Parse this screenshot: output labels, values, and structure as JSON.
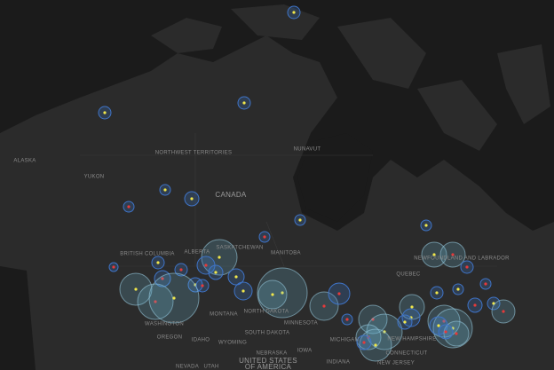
{
  "map": {
    "labels": [
      "ALASKA",
      "YUKON",
      "NORTHWEST TERRITORIES",
      "NUNAVUT",
      "CANADA",
      "BRITISH COLUMBIA",
      "ALBERTA",
      "SASKATCHEWAN",
      "MANITOBA",
      "QUEBEC",
      "NEWFOUNDLAND AND LABRADOR",
      "WASHINGTON",
      "OREGON",
      "IDAHO",
      "MONTANA",
      "WYOMING",
      "NORTH DAKOTA",
      "SOUTH DAKOTA",
      "MINNESOTA",
      "NEBRASKA",
      "IOWA",
      "MICHIGAN",
      "NEW HAMPSHIRE",
      "CONNECTICUT",
      "NEW JERSEY",
      "INDIANA",
      "NEVADA",
      "UTAH",
      "UNITED STATES",
      "OF AMERICA"
    ]
  }
}
